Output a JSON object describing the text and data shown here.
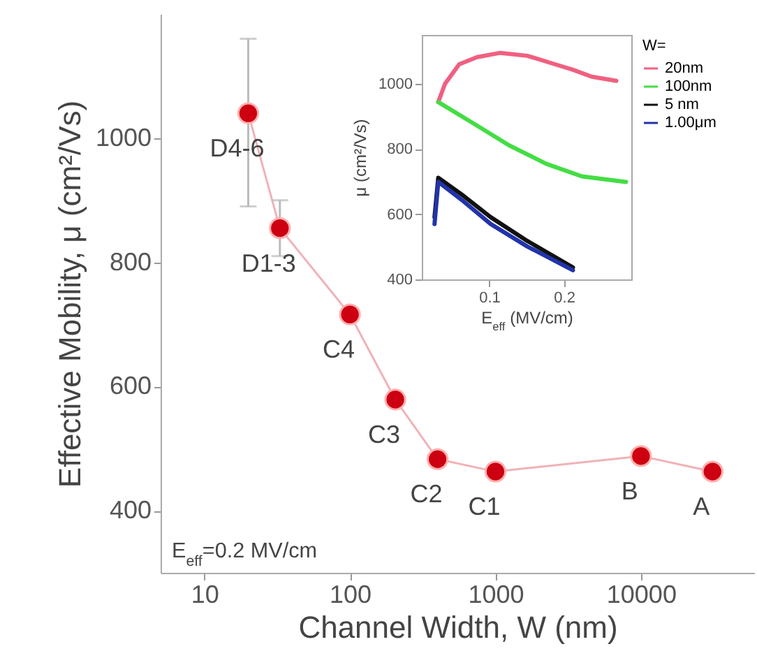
{
  "chart_data": [
    {
      "type": "line",
      "xlabel": "Channel Width, W (nm)",
      "ylabel": "Effective Mobility, μ (cm²/Vs)",
      "log": "x",
      "xlim": [
        5,
        60000
      ],
      "ylim": [
        300,
        1200
      ],
      "xticks": [
        10,
        100,
        1000,
        10000
      ],
      "yticks": [
        400,
        600,
        800,
        1000
      ],
      "grid": false,
      "marker": "circle",
      "series": [
        {
          "color": "#cc0011",
          "x": [
            20,
            33,
            100,
            205,
            400,
            1000,
            10000,
            31000
          ],
          "values": [
            1040,
            855,
            716,
            579,
            483,
            463,
            488,
            463
          ],
          "errors": [
            [
              890,
              1160
            ],
            [
              810,
              900
            ],
            null,
            null,
            null,
            null,
            null,
            null
          ]
        }
      ],
      "annotations": [
        {
          "text": "D4-6",
          "x": 20,
          "y": 1040
        },
        {
          "text": "D1-3",
          "x": 33,
          "y": 855
        },
        {
          "text": "C4",
          "x": 100,
          "y": 716
        },
        {
          "text": "C3",
          "x": 205,
          "y": 579
        },
        {
          "text": "C2",
          "x": 400,
          "y": 483
        },
        {
          "text": "C1",
          "x": 1000,
          "y": 463
        },
        {
          "text": "B",
          "x": 10000,
          "y": 488
        },
        {
          "text": "A",
          "x": 31000,
          "y": 463
        },
        "E$_{eff}$=0.2 MV/cm"
      ]
    },
    {
      "type": "line",
      "xlabel": "E$_{eff}$ (MV/cm)",
      "ylabel": "μ (cm²/Vs)",
      "xlim": [
        0.01,
        0.29
      ],
      "ylim": [
        400,
        1150
      ],
      "xticks": [
        0.1,
        0.2
      ],
      "yticks": [
        400,
        600,
        800,
        1000
      ],
      "grid": false,
      "legend": "right",
      "legend_title": "W=",
      "series": [
        {
          "name": "20nm",
          "color": "#f06080",
          "x": [
            0.032,
            0.041,
            0.06,
            0.084,
            0.115,
            0.151,
            0.188,
            0.212,
            0.237,
            0.27
          ],
          "values": [
            944,
            1000,
            1060,
            1082,
            1095,
            1086,
            1060,
            1043,
            1022,
            1009
          ]
        },
        {
          "name": "100nm",
          "color": "#44dd44",
          "x": [
            0.032,
            0.078,
            0.127,
            0.176,
            0.224,
            0.283
          ],
          "values": [
            944,
            880,
            811,
            755,
            716,
            699
          ]
        },
        {
          "name": "5 nm",
          "color": "#111111",
          "x": [
            0.027,
            0.032,
            0.066,
            0.102,
            0.151,
            0.212
          ],
          "values": [
            591,
            712,
            656,
            591,
            518,
            437
          ]
        },
        {
          "name": "1.00μm",
          "color": "#2233aa",
          "x": [
            0.027,
            0.032,
            0.066,
            0.102,
            0.151,
            0.212
          ],
          "values": [
            570,
            699,
            639,
            570,
            501,
            428
          ]
        }
      ]
    }
  ]
}
